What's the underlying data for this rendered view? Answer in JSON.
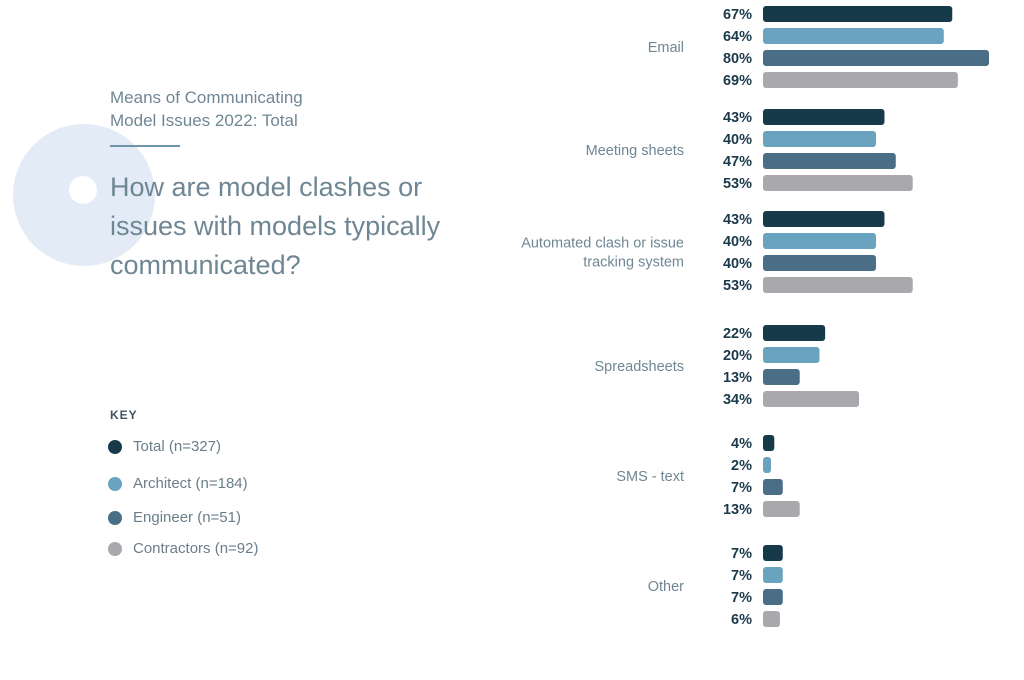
{
  "header": {
    "subtitle_line1": "Means of Communicating",
    "subtitle_line2": "Model Issues 2022: Total",
    "question": "How are model clashes or issues with models typically communicated?"
  },
  "key": {
    "title": "KEY"
  },
  "chart_data": {
    "type": "bar",
    "orientation": "horizontal",
    "categories": [
      [
        "Email"
      ],
      [
        "Meeting sheets"
      ],
      [
        "Automated clash or issue",
        "tracking system"
      ],
      [
        "Spreadsheets"
      ],
      [
        "SMS - text"
      ],
      [
        "Other"
      ]
    ],
    "series": [
      {
        "name": "Total (n=327)",
        "color": "#163a4a",
        "values": [
          67,
          43,
          43,
          22,
          4,
          7
        ]
      },
      {
        "name": "Architect (n=184)",
        "color": "#6aa3bf",
        "values": [
          64,
          40,
          40,
          20,
          2,
          7
        ]
      },
      {
        "name": "Engineer (n=51)",
        "color": "#4b6e87",
        "values": [
          80,
          47,
          40,
          13,
          7,
          7
        ]
      },
      {
        "name": "Contractors (n=92)",
        "color": "#a8a8ad",
        "values": [
          69,
          53,
          53,
          34,
          13,
          6
        ]
      }
    ],
    "value_suffix": "%",
    "xlim": [
      0,
      80
    ],
    "grid": false,
    "legend_position": "left"
  }
}
